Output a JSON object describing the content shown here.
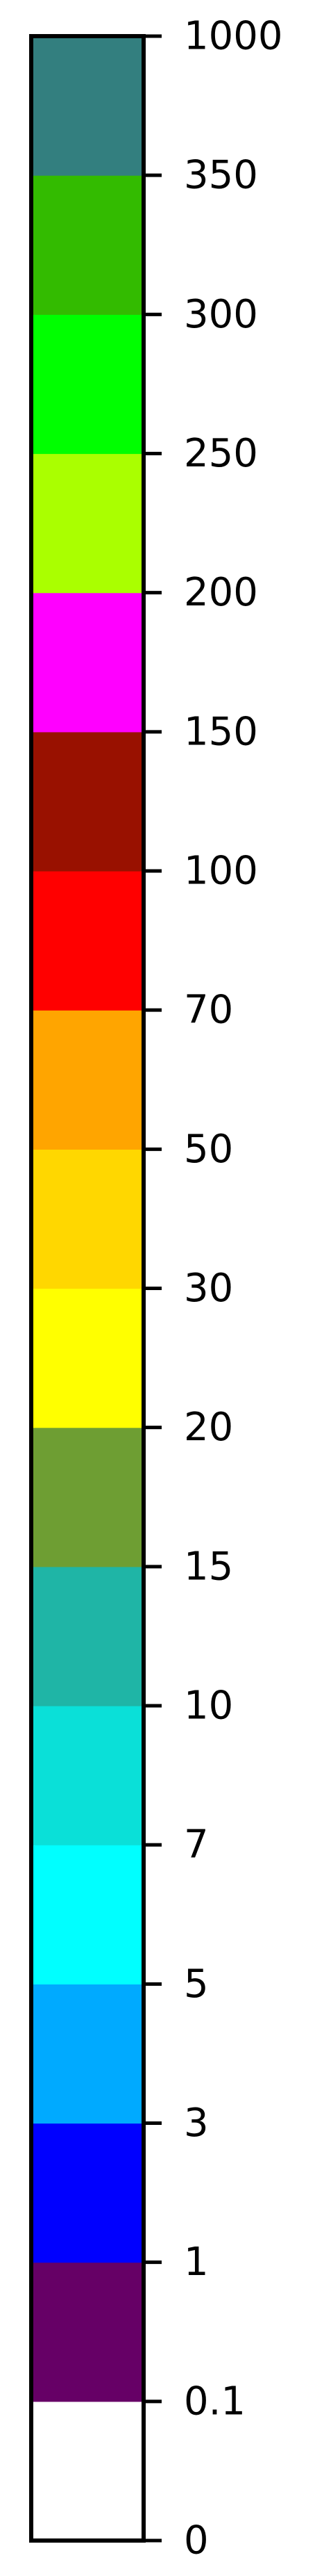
{
  "chart_data": {
    "type": "colorbar",
    "orientation": "vertical",
    "tick_side": "right",
    "levels": [
      0,
      0.1,
      1,
      3,
      5,
      7,
      10,
      15,
      20,
      30,
      50,
      70,
      100,
      150,
      200,
      250,
      300,
      350,
      1000
    ],
    "tick_labels": [
      "0",
      "0.1",
      "1",
      "3",
      "5",
      "7",
      "10",
      "15",
      "20",
      "30",
      "50",
      "70",
      "100",
      "150",
      "200",
      "250",
      "300",
      "350",
      "1000"
    ],
    "bins": [
      {
        "from": 0,
        "to": 0.1,
        "color": "#ffffff"
      },
      {
        "from": 0.1,
        "to": 1,
        "color": "#660066"
      },
      {
        "from": 1,
        "to": 3,
        "color": "#0000ff"
      },
      {
        "from": 3,
        "to": 5,
        "color": "#00aaff"
      },
      {
        "from": 5,
        "to": 7,
        "color": "#00ffff"
      },
      {
        "from": 7,
        "to": 10,
        "color": "#0ae0d8"
      },
      {
        "from": 10,
        "to": 15,
        "color": "#1fb5a6"
      },
      {
        "from": 15,
        "to": 20,
        "color": "#6e9e33"
      },
      {
        "from": 20,
        "to": 30,
        "color": "#ffff00"
      },
      {
        "from": 30,
        "to": 50,
        "color": "#ffd700"
      },
      {
        "from": 50,
        "to": 70,
        "color": "#ffa500"
      },
      {
        "from": 70,
        "to": 100,
        "color": "#ff0000"
      },
      {
        "from": 100,
        "to": 150,
        "color": "#991100"
      },
      {
        "from": 150,
        "to": 200,
        "color": "#ff00ff"
      },
      {
        "from": 200,
        "to": 250,
        "color": "#aaff00"
      },
      {
        "from": 250,
        "to": 300,
        "color": "#00ff00"
      },
      {
        "from": 300,
        "to": 350,
        "color": "#33bb00"
      },
      {
        "from": 350,
        "to": 1000,
        "color": "#337f7f"
      }
    ],
    "frame_color": "#000000"
  }
}
